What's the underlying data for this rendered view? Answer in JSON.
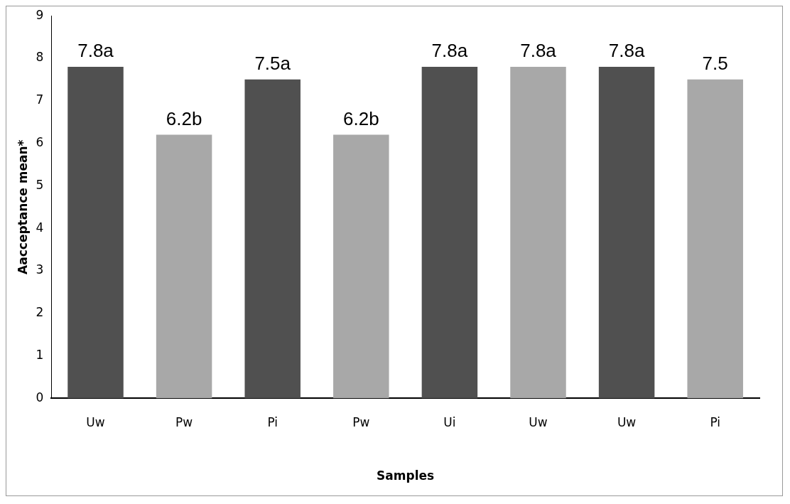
{
  "chart_data": {
    "type": "bar",
    "xlabel": "Samples",
    "ylabel": "Aacceptance mean*",
    "categories": [
      "Uw",
      "Pw",
      "Pi",
      "Pw",
      "Ui",
      "Uw",
      "Uw",
      "Pi"
    ],
    "values": [
      7.8,
      6.2,
      7.5,
      6.2,
      7.8,
      7.8,
      7.8,
      7.5
    ],
    "colors": [
      "#505050",
      "#a8a8a8",
      "#505050",
      "#a8a8a8",
      "#505050",
      "#a8a8a8",
      "#505050",
      "#a8a8a8"
    ],
    "value_labels": [
      "7.8a",
      "6.2b",
      "7.5a",
      "6.2b",
      "7.8a",
      "7.8a",
      "7.8a",
      "7.5"
    ],
    "ylim": [
      0,
      9
    ],
    "yticks": [
      0,
      1,
      2,
      3,
      4,
      5,
      6,
      7,
      8,
      9
    ],
    "grid": false,
    "legend": false
  }
}
